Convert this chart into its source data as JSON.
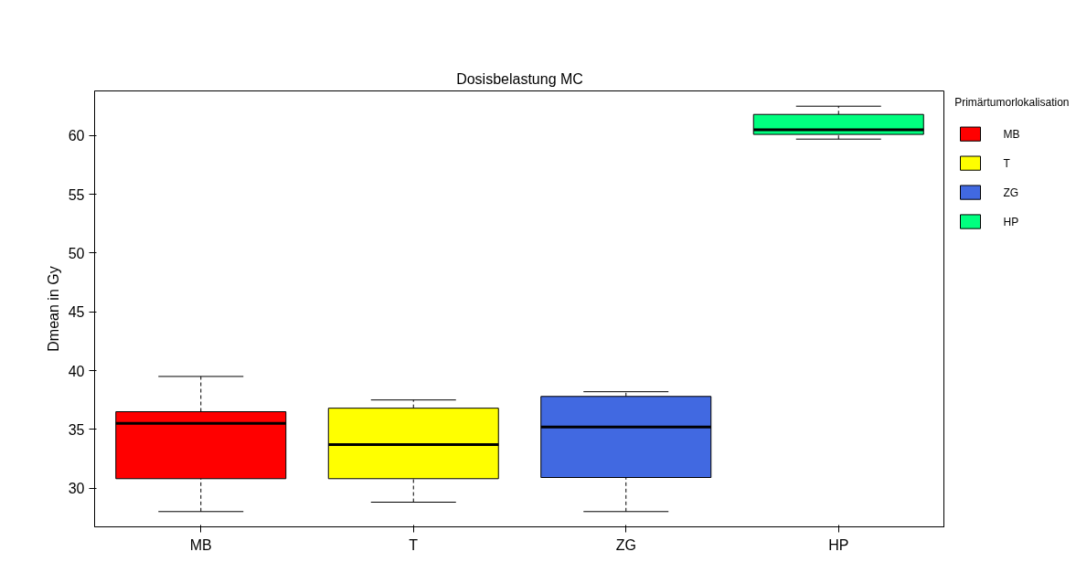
{
  "chart_data": {
    "type": "box",
    "title": "Dosisbelastung MC",
    "ylabel": "Dmean in Gy",
    "legend_title": "Primärtumorlokalisation",
    "categories": [
      "MB",
      "T",
      "ZG",
      "HP"
    ],
    "series": [
      {
        "name": "MB",
        "color": "#ff0000",
        "boxes": [
          {
            "low": 28,
            "q1": 30.8,
            "median": 35.5,
            "q3": 36.5,
            "high": 39.5
          },
          null,
          null,
          null
        ]
      },
      {
        "name": "T",
        "color": "#ffff00",
        "boxes": [
          null,
          {
            "low": 28.8,
            "q1": 30.8,
            "median": 33.7,
            "q3": 36.8,
            "high": 37.5
          },
          null,
          null
        ]
      },
      {
        "name": "ZG",
        "color": "#4169e1",
        "boxes": [
          null,
          null,
          {
            "low": 28,
            "q1": 30.9,
            "median": 35.2,
            "q3": 37.8,
            "high": 38.2
          },
          null
        ]
      },
      {
        "name": "HP",
        "color": "#00ff7f",
        "boxes": [
          null,
          null,
          null,
          {
            "low": 59.7,
            "q1": 60.1,
            "median": 60.5,
            "q3": 61.8,
            "high": 62.5
          }
        ]
      }
    ],
    "ylim": [
      26.7,
      63.8
    ],
    "yticks": [
      30,
      35,
      40,
      45,
      50,
      55,
      60
    ],
    "legend": "top right",
    "grid": false
  }
}
